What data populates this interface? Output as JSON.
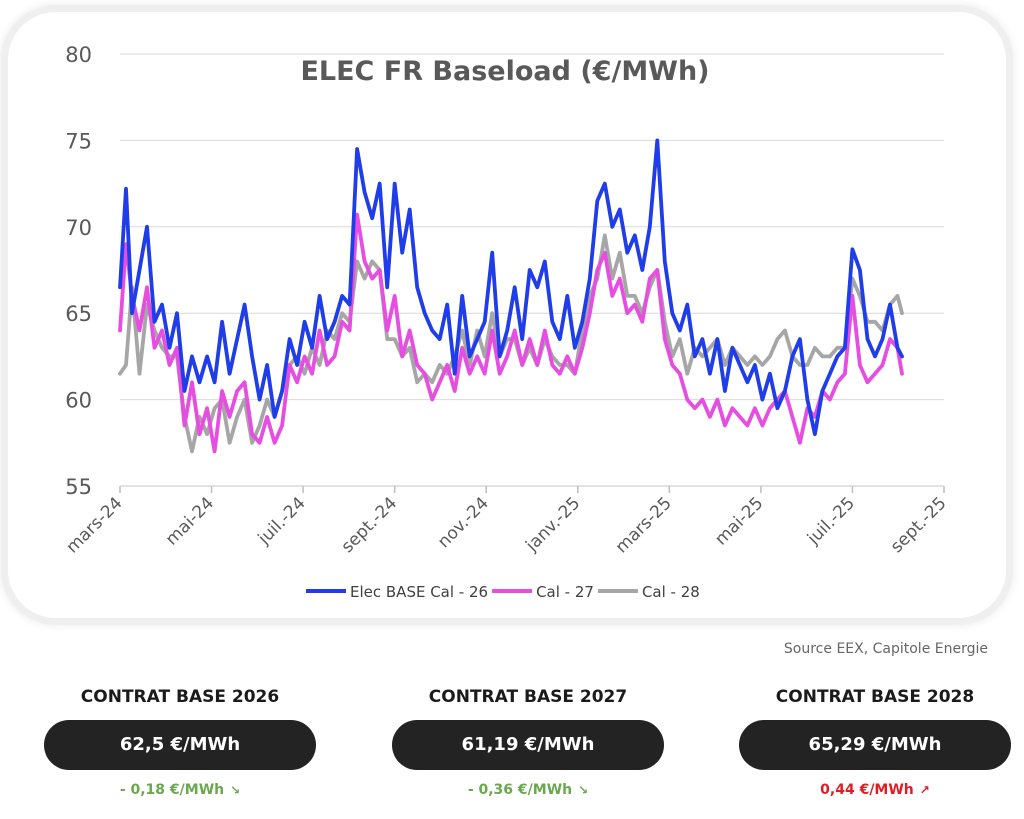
{
  "chart_data": {
    "type": "line",
    "title": "ELEC FR Baseload (€/MWh)",
    "xlabel": "",
    "ylabel": "",
    "ylim": [
      55,
      80
    ],
    "yticks": [
      "55",
      "60",
      "65",
      "70",
      "75",
      "80"
    ],
    "x_ticks": [
      "mars-24",
      "mai-24",
      "juil.-24",
      "sept.-24",
      "nov.-24",
      "janv.-25",
      "mars-25",
      "mai-25",
      "juil.-25",
      "sept.-25"
    ],
    "x_range": [
      "2024-03-01",
      "2025-09-01"
    ],
    "grid": true,
    "legend_position": "bottom",
    "series": [
      {
        "name": "Elec BASE Cal - 26",
        "color": "#1f3de8",
        "x": [
          "2024-03-01",
          "2024-03-05",
          "2024-03-09",
          "2024-03-14",
          "2024-03-19",
          "2024-03-24",
          "2024-03-29",
          "2024-04-03",
          "2024-04-08",
          "2024-04-13",
          "2024-04-18",
          "2024-04-23",
          "2024-04-28",
          "2024-05-03",
          "2024-05-08",
          "2024-05-13",
          "2024-05-18",
          "2024-05-23",
          "2024-05-28",
          "2024-06-02",
          "2024-06-07",
          "2024-06-12",
          "2024-06-17",
          "2024-06-22",
          "2024-06-27",
          "2024-07-02",
          "2024-07-07",
          "2024-07-12",
          "2024-07-17",
          "2024-07-22",
          "2024-07-27",
          "2024-08-01",
          "2024-08-06",
          "2024-08-11",
          "2024-08-16",
          "2024-08-21",
          "2024-08-26",
          "2024-08-31",
          "2024-09-05",
          "2024-09-10",
          "2024-09-15",
          "2024-09-20",
          "2024-09-25",
          "2024-09-30",
          "2024-10-05",
          "2024-10-10",
          "2024-10-15",
          "2024-10-20",
          "2024-10-25",
          "2024-10-30",
          "2024-11-04",
          "2024-11-09",
          "2024-11-14",
          "2024-11-19",
          "2024-11-24",
          "2024-11-29",
          "2024-12-04",
          "2024-12-09",
          "2024-12-14",
          "2024-12-19",
          "2024-12-24",
          "2024-12-29",
          "2025-01-03",
          "2025-01-08",
          "2025-01-13",
          "2025-01-18",
          "2025-01-23",
          "2025-01-28",
          "2025-02-02",
          "2025-02-07",
          "2025-02-12",
          "2025-02-17",
          "2025-02-22",
          "2025-02-27",
          "2025-03-04",
          "2025-03-09",
          "2025-03-14",
          "2025-03-19",
          "2025-03-24",
          "2025-03-29",
          "2025-04-03",
          "2025-04-08",
          "2025-04-13",
          "2025-04-18",
          "2025-04-23",
          "2025-04-28",
          "2025-05-03",
          "2025-05-08",
          "2025-05-13",
          "2025-05-18",
          "2025-05-23",
          "2025-05-28",
          "2025-06-02",
          "2025-06-07",
          "2025-06-12",
          "2025-06-17",
          "2025-06-22",
          "2025-06-27",
          "2025-07-02",
          "2025-07-07",
          "2025-07-12",
          "2025-07-17",
          "2025-07-22",
          "2025-07-27",
          "2025-08-01",
          "2025-08-04"
        ],
        "y": [
          66.5,
          72.2,
          65.0,
          67.5,
          70.0,
          64.5,
          65.5,
          63.0,
          65.0,
          60.5,
          62.5,
          61.0,
          62.5,
          61.0,
          64.5,
          61.5,
          63.5,
          65.5,
          62.5,
          60.0,
          62.0,
          59.0,
          60.5,
          63.5,
          62.0,
          64.5,
          63.0,
          66.0,
          63.5,
          64.5,
          66.0,
          65.5,
          74.5,
          72.0,
          70.5,
          72.5,
          66.5,
          72.5,
          68.5,
          71.0,
          66.5,
          65.0,
          64.0,
          63.5,
          65.5,
          61.5,
          66.0,
          62.5,
          63.5,
          64.5,
          68.5,
          62.5,
          64.0,
          66.5,
          63.5,
          67.5,
          66.5,
          68.0,
          64.5,
          63.5,
          66.0,
          63.0,
          64.5,
          67.0,
          71.5,
          72.5,
          70.0,
          71.0,
          68.5,
          69.5,
          67.5,
          70.0,
          75.0,
          68.0,
          65.0,
          64.0,
          65.5,
          62.5,
          63.5,
          61.5,
          63.5,
          60.5,
          63.0,
          62.0,
          61.0,
          62.0,
          60.0,
          61.5,
          59.5,
          60.5,
          62.5,
          63.5,
          60.0,
          58.0,
          60.5,
          61.5,
          62.5,
          63.0,
          68.7,
          67.5,
          63.5,
          62.5,
          63.5,
          65.5,
          63.0,
          62.5
        ]
      },
      {
        "name": "Cal - 27",
        "color": "#e54ee0",
        "x": [
          "2024-03-01",
          "2024-03-05",
          "2024-03-09",
          "2024-03-14",
          "2024-03-19",
          "2024-03-24",
          "2024-03-29",
          "2024-04-03",
          "2024-04-08",
          "2024-04-13",
          "2024-04-18",
          "2024-04-23",
          "2024-04-28",
          "2024-05-03",
          "2024-05-08",
          "2024-05-13",
          "2024-05-18",
          "2024-05-23",
          "2024-05-28",
          "2024-06-02",
          "2024-06-07",
          "2024-06-12",
          "2024-06-17",
          "2024-06-22",
          "2024-06-27",
          "2024-07-02",
          "2024-07-07",
          "2024-07-12",
          "2024-07-17",
          "2024-07-22",
          "2024-07-27",
          "2024-08-01",
          "2024-08-06",
          "2024-08-11",
          "2024-08-16",
          "2024-08-21",
          "2024-08-26",
          "2024-08-31",
          "2024-09-05",
          "2024-09-10",
          "2024-09-15",
          "2024-09-20",
          "2024-09-25",
          "2024-09-30",
          "2024-10-05",
          "2024-10-10",
          "2024-10-15",
          "2024-10-20",
          "2024-10-25",
          "2024-10-30",
          "2024-11-04",
          "2024-11-09",
          "2024-11-14",
          "2024-11-19",
          "2024-11-24",
          "2024-11-29",
          "2024-12-04",
          "2024-12-09",
          "2024-12-14",
          "2024-12-19",
          "2024-12-24",
          "2024-12-29",
          "2025-01-03",
          "2025-01-08",
          "2025-01-13",
          "2025-01-18",
          "2025-01-23",
          "2025-01-28",
          "2025-02-02",
          "2025-02-07",
          "2025-02-12",
          "2025-02-17",
          "2025-02-22",
          "2025-02-27",
          "2025-03-04",
          "2025-03-09",
          "2025-03-14",
          "2025-03-19",
          "2025-03-24",
          "2025-03-29",
          "2025-04-03",
          "2025-04-08",
          "2025-04-13",
          "2025-04-18",
          "2025-04-23",
          "2025-04-28",
          "2025-05-03",
          "2025-05-08",
          "2025-05-13",
          "2025-05-18",
          "2025-05-23",
          "2025-05-28",
          "2025-06-02",
          "2025-06-07",
          "2025-06-12",
          "2025-06-17",
          "2025-06-22",
          "2025-06-27",
          "2025-07-02",
          "2025-07-07",
          "2025-07-12",
          "2025-07-17",
          "2025-07-22",
          "2025-07-27",
          "2025-08-01",
          "2025-08-04"
        ],
        "y": [
          64.0,
          69.0,
          66.0,
          64.0,
          66.5,
          63.0,
          64.0,
          62.0,
          63.0,
          58.5,
          61.0,
          58.0,
          59.5,
          57.0,
          60.5,
          59.0,
          60.5,
          61.0,
          58.0,
          57.5,
          59.0,
          57.5,
          58.5,
          62.0,
          61.0,
          62.5,
          61.5,
          64.0,
          62.0,
          62.5,
          64.5,
          64.0,
          70.7,
          68.0,
          67.0,
          67.5,
          64.0,
          66.0,
          62.5,
          64.0,
          62.0,
          61.5,
          60.0,
          61.0,
          62.0,
          60.5,
          63.0,
          61.5,
          62.5,
          61.5,
          64.0,
          61.5,
          62.5,
          64.0,
          62.0,
          63.5,
          62.0,
          64.0,
          62.0,
          61.5,
          62.5,
          61.5,
          63.0,
          65.0,
          67.5,
          68.5,
          66.0,
          67.0,
          65.0,
          65.5,
          64.5,
          67.0,
          67.5,
          63.5,
          62.0,
          61.5,
          60.0,
          59.5,
          60.0,
          59.0,
          60.0,
          58.5,
          59.5,
          59.0,
          58.5,
          59.5,
          58.5,
          59.5,
          60.0,
          60.5,
          59.0,
          57.5,
          59.5,
          59.0,
          60.5,
          60.0,
          61.0,
          61.5,
          66.0,
          62.0,
          61.0,
          61.5,
          62.0,
          63.5,
          63.0,
          61.5
        ]
      },
      {
        "name": "Cal - 28",
        "color": "#a6a6a6",
        "x": [
          "2024-03-01",
          "2024-03-05",
          "2024-03-09",
          "2024-03-14",
          "2024-03-19",
          "2024-03-24",
          "2024-03-29",
          "2024-04-03",
          "2024-04-08",
          "2024-04-13",
          "2024-04-18",
          "2024-04-23",
          "2024-04-28",
          "2024-05-03",
          "2024-05-08",
          "2024-05-13",
          "2024-05-18",
          "2024-05-23",
          "2024-05-28",
          "2024-06-02",
          "2024-06-07",
          "2024-06-12",
          "2024-06-17",
          "2024-06-22",
          "2024-06-27",
          "2024-07-02",
          "2024-07-07",
          "2024-07-12",
          "2024-07-17",
          "2024-07-22",
          "2024-07-27",
          "2024-08-01",
          "2024-08-06",
          "2024-08-11",
          "2024-08-16",
          "2024-08-21",
          "2024-08-26",
          "2024-08-31",
          "2024-09-05",
          "2024-09-10",
          "2024-09-15",
          "2024-09-20",
          "2024-09-25",
          "2024-09-30",
          "2024-10-05",
          "2024-10-10",
          "2024-10-15",
          "2024-10-20",
          "2024-10-25",
          "2024-10-30",
          "2024-11-04",
          "2024-11-09",
          "2024-11-14",
          "2024-11-19",
          "2024-11-24",
          "2024-11-29",
          "2024-12-04",
          "2024-12-09",
          "2024-12-14",
          "2024-12-19",
          "2024-12-24",
          "2024-12-29",
          "2025-01-03",
          "2025-01-08",
          "2025-01-13",
          "2025-01-18",
          "2025-01-23",
          "2025-01-28",
          "2025-02-02",
          "2025-02-07",
          "2025-02-12",
          "2025-02-17",
          "2025-02-22",
          "2025-02-27",
          "2025-03-04",
          "2025-03-09",
          "2025-03-14",
          "2025-03-19",
          "2025-03-24",
          "2025-03-29",
          "2025-04-03",
          "2025-04-08",
          "2025-04-13",
          "2025-04-18",
          "2025-04-23",
          "2025-04-28",
          "2025-05-03",
          "2025-05-08",
          "2025-05-13",
          "2025-05-18",
          "2025-05-23",
          "2025-05-28",
          "2025-06-02",
          "2025-06-07",
          "2025-06-12",
          "2025-06-17",
          "2025-06-22",
          "2025-06-27",
          "2025-07-02",
          "2025-07-07",
          "2025-07-12",
          "2025-07-17",
          "2025-07-22",
          "2025-07-27",
          "2025-08-01",
          "2025-08-04"
        ],
        "y": [
          61.5,
          62.0,
          66.5,
          61.5,
          65.5,
          64.0,
          63.0,
          62.5,
          62.5,
          59.0,
          57.0,
          59.0,
          58.0,
          59.5,
          60.0,
          57.5,
          59.0,
          60.0,
          57.5,
          58.5,
          60.0,
          59.0,
          60.5,
          62.0,
          62.5,
          61.5,
          63.0,
          62.0,
          64.0,
          63.5,
          65.0,
          64.5,
          68.0,
          67.0,
          68.0,
          67.5,
          63.5,
          63.5,
          62.5,
          63.0,
          61.0,
          61.5,
          61.0,
          62.0,
          61.5,
          62.5,
          64.0,
          62.0,
          64.0,
          62.5,
          65.0,
          62.5,
          63.5,
          63.5,
          62.0,
          63.0,
          62.0,
          63.5,
          62.5,
          62.0,
          62.0,
          61.5,
          64.0,
          66.0,
          67.0,
          69.5,
          67.0,
          68.5,
          66.0,
          66.0,
          65.0,
          66.5,
          67.5,
          64.5,
          62.5,
          63.5,
          61.5,
          63.0,
          62.5,
          63.0,
          63.5,
          62.0,
          63.0,
          62.5,
          62.0,
          62.5,
          62.0,
          62.5,
          63.5,
          64.0,
          62.5,
          62.0,
          62.0,
          63.0,
          62.5,
          62.5,
          63.0,
          63.0,
          67.0,
          66.0,
          64.5,
          64.5,
          64.0,
          65.5,
          66.0,
          65.0
        ]
      }
    ]
  },
  "source": "Source EEX, Capitole Energie",
  "contracts": [
    {
      "title": "CONTRAT BASE 2026",
      "price": "62,5 €/MWh",
      "delta": "- 0,18 €/MWh",
      "direction": "down",
      "delta_color": "#6aa84f"
    },
    {
      "title": "CONTRAT BASE 2027",
      "price": "61,19 €/MWh",
      "delta": "- 0,36 €/MWh",
      "direction": "down",
      "delta_color": "#6aa84f"
    },
    {
      "title": "CONTRAT BASE 2028",
      "price": "65,29 €/MWh",
      "delta": "0,44 €/MWh",
      "direction": "up",
      "delta_color": "#e31b23"
    }
  ]
}
